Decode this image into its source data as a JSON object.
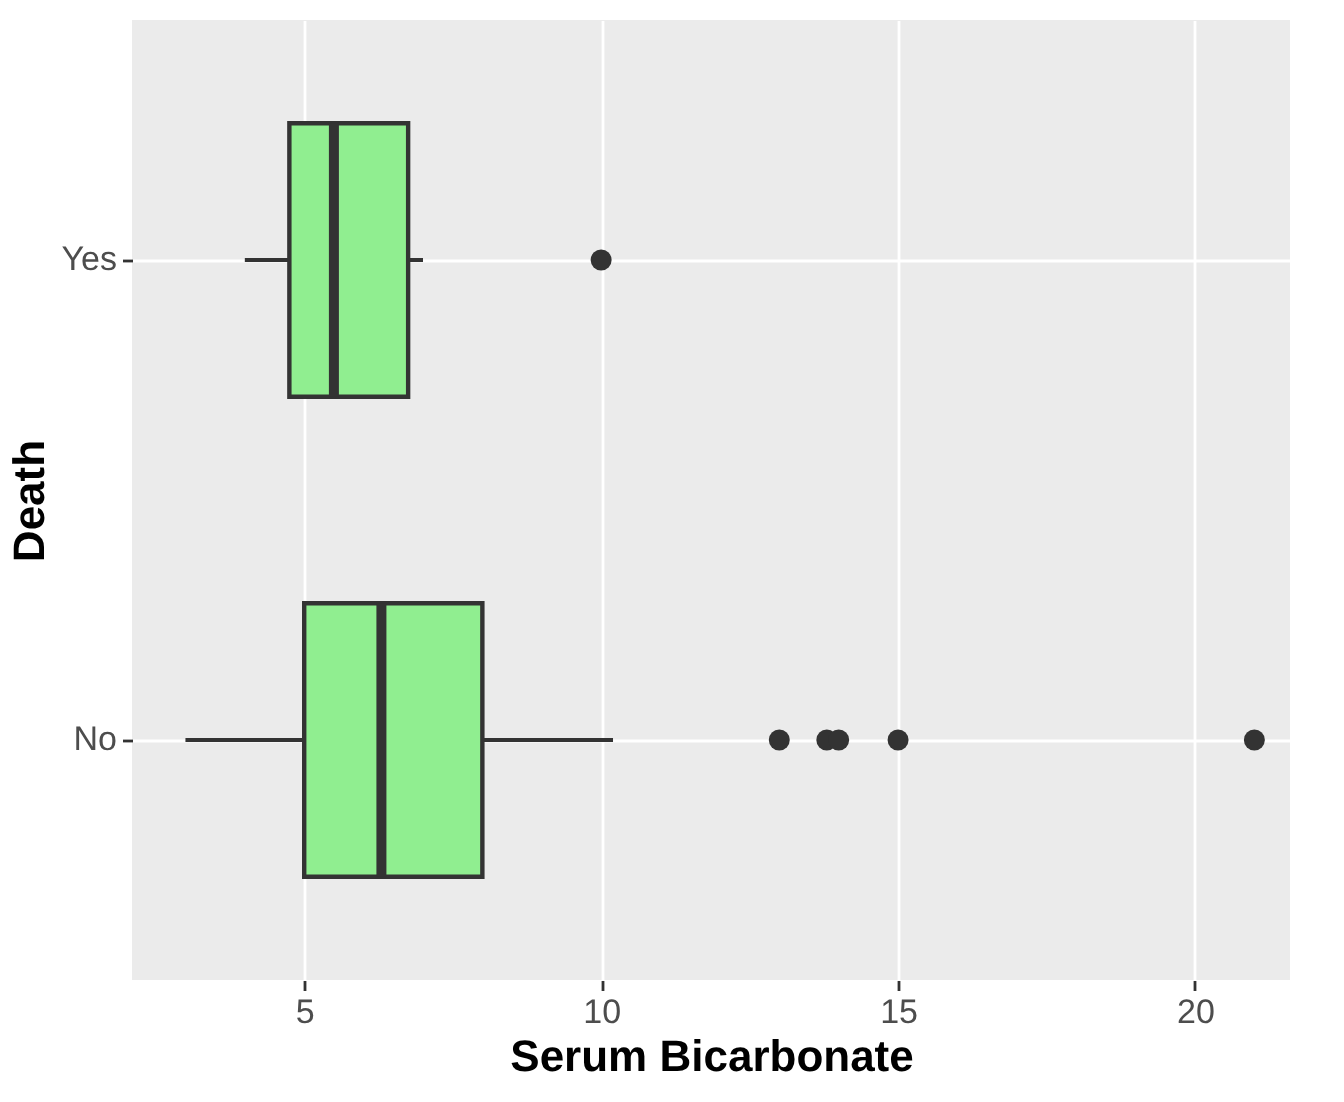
{
  "chart_data": {
    "type": "box",
    "orientation": "horizontal",
    "xlabel": "Serum Bicarbonate",
    "ylabel": "Death",
    "categories": [
      "Yes",
      "No"
    ],
    "boxes": [
      {
        "low": 4.0,
        "q1": 4.75,
        "median": 5.5,
        "q3": 6.75,
        "high": 7.0,
        "outliers": [
          10.0
        ]
      },
      {
        "low": 3.0,
        "q1": 5.0,
        "median": 6.3,
        "q3": 8.0,
        "high": 10.2,
        "outliers": [
          13.0,
          13.8,
          14.0,
          15.0,
          21.0
        ]
      }
    ],
    "color": "#90ee90",
    "xlim": [
      2.1,
      21.6
    ],
    "xticks": [
      5,
      10,
      15,
      20
    ],
    "grid": true
  }
}
